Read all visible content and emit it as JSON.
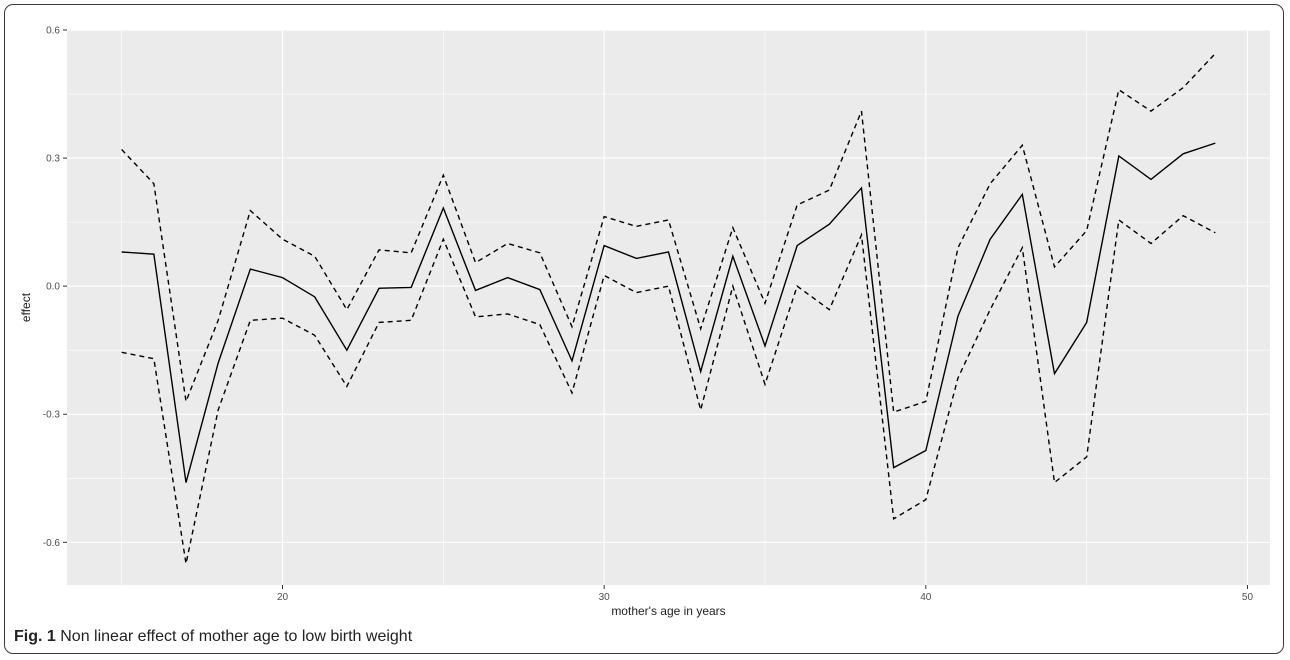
{
  "figure": {
    "caption_label": "Fig. 1",
    "caption_text": "Non linear effect of mother age to low birth weight"
  },
  "colors": {
    "panel_background": "#ebebeb",
    "gridline": "#ffffff",
    "line": "#000000"
  },
  "chart_data": {
    "type": "line",
    "title": "",
    "xlabel": "mother's age in years",
    "ylabel": "effect",
    "xlim": [
      13.3,
      50.7
    ],
    "ylim": [
      -0.7,
      0.6
    ],
    "x_ticks": [
      20,
      30,
      40,
      50
    ],
    "x_tick_labels": [
      "20",
      "30",
      "40",
      "50"
    ],
    "y_ticks": [
      -0.6,
      -0.3,
      0.0,
      0.3,
      0.6
    ],
    "y_tick_labels": [
      "-0.6",
      "-0.3",
      "0.0",
      "0.3",
      "0.6"
    ],
    "grid": true,
    "legend": "none",
    "x": [
      15,
      16,
      17,
      18,
      19,
      20,
      21,
      22,
      23,
      24,
      25,
      26,
      27,
      28,
      29,
      30,
      31,
      32,
      33,
      34,
      35,
      36,
      37,
      38,
      39,
      40,
      41,
      42,
      43,
      44,
      45,
      46,
      47,
      48,
      49
    ],
    "series": [
      {
        "style": "solid",
        "values": [
          0.08,
          0.075,
          -0.46,
          -0.18,
          0.04,
          0.02,
          -0.025,
          -0.15,
          -0.005,
          -0.003,
          0.183,
          -0.01,
          0.02,
          -0.008,
          -0.175,
          0.095,
          0.065,
          0.08,
          -0.2,
          0.07,
          -0.14,
          0.095,
          0.145,
          0.23,
          -0.425,
          -0.385,
          -0.07,
          0.11,
          0.215,
          -0.205,
          -0.085,
          0.305,
          0.25,
          0.31,
          0.335
        ]
      },
      {
        "style": "dashed",
        "values": [
          0.32,
          0.24,
          -0.27,
          -0.08,
          0.177,
          0.11,
          0.07,
          -0.055,
          0.085,
          0.078,
          0.26,
          0.055,
          0.1,
          0.078,
          -0.095,
          0.163,
          0.14,
          0.155,
          -0.1,
          0.137,
          -0.04,
          0.19,
          0.225,
          0.41,
          -0.295,
          -0.27,
          0.09,
          0.24,
          0.33,
          0.045,
          0.13,
          0.46,
          0.41,
          0.465,
          0.545
        ]
      },
      {
        "style": "dashed",
        "values": [
          -0.155,
          -0.17,
          -0.65,
          -0.29,
          -0.08,
          -0.075,
          -0.115,
          -0.235,
          -0.085,
          -0.08,
          0.11,
          -0.072,
          -0.065,
          -0.09,
          -0.25,
          0.025,
          -0.015,
          0.0,
          -0.29,
          0.0,
          -0.23,
          0.0,
          -0.055,
          0.12,
          -0.545,
          -0.5,
          -0.215,
          -0.055,
          0.09,
          -0.46,
          -0.4,
          0.155,
          0.1,
          0.165,
          0.125
        ]
      }
    ]
  }
}
